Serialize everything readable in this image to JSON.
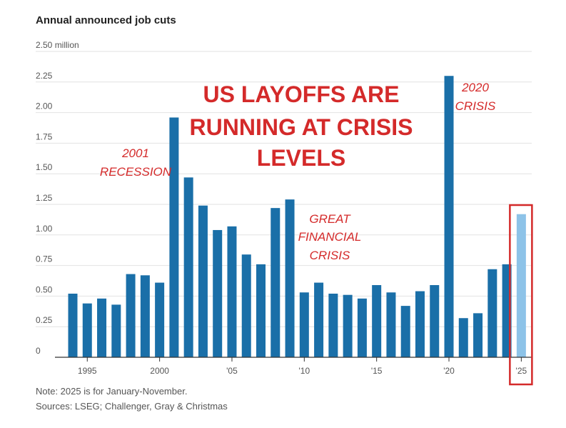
{
  "chart_data": {
    "type": "bar",
    "title": "Annual announced job cuts",
    "headline": [
      "US LAYOFFS ARE",
      "RUNNING AT CRISIS",
      "LEVELS"
    ],
    "x": [
      1994,
      1995,
      1996,
      1997,
      1998,
      1999,
      2000,
      2001,
      2002,
      2003,
      2004,
      2005,
      2006,
      2007,
      2008,
      2009,
      2010,
      2011,
      2012,
      2013,
      2014,
      2015,
      2016,
      2017,
      2018,
      2019,
      2020,
      2021,
      2022,
      2023,
      2024,
      2025
    ],
    "values": [
      0.52,
      0.44,
      0.48,
      0.43,
      0.68,
      0.67,
      0.61,
      1.96,
      1.47,
      1.24,
      1.04,
      1.07,
      0.84,
      0.76,
      1.22,
      1.29,
      0.53,
      0.61,
      0.52,
      0.51,
      0.48,
      0.59,
      0.53,
      0.42,
      0.54,
      0.59,
      2.3,
      0.32,
      0.36,
      0.72,
      0.76,
      1.17
    ],
    "highlight_year": 2025,
    "ylim": [
      0,
      2.5
    ],
    "y_ticks": [
      {
        "value": 0,
        "label": "0"
      },
      {
        "value": 0.25,
        "label": "0.25"
      },
      {
        "value": 0.5,
        "label": "0.50"
      },
      {
        "value": 0.75,
        "label": "0.75"
      },
      {
        "value": 1.0,
        "label": "1.00"
      },
      {
        "value": 1.25,
        "label": "1.25"
      },
      {
        "value": 1.5,
        "label": "1.50"
      },
      {
        "value": 1.75,
        "label": "1.75"
      },
      {
        "value": 2.0,
        "label": "2.00"
      },
      {
        "value": 2.25,
        "label": "2.25"
      },
      {
        "value": 2.5,
        "label": "2.50 million"
      }
    ],
    "x_ticks": [
      {
        "year": 1995,
        "label": "1995"
      },
      {
        "year": 2000,
        "label": "2000"
      },
      {
        "year": 2005,
        "label": "'05"
      },
      {
        "year": 2010,
        "label": "'10"
      },
      {
        "year": 2015,
        "label": "'15"
      },
      {
        "year": 2020,
        "label": "'20"
      },
      {
        "year": 2025,
        "label": "'25"
      }
    ],
    "annotations": [
      {
        "name": "annotation-2001-recession",
        "lines": [
          "2001",
          "RECESSION"
        ]
      },
      {
        "name": "annotation-great-financial-crisis",
        "lines": [
          "GREAT",
          "FINANCIAL",
          "CRISIS"
        ]
      },
      {
        "name": "annotation-2020-crisis",
        "lines": [
          "2020",
          "CRISIS"
        ]
      }
    ],
    "grid": true,
    "colors": {
      "bar": "#1a6fa8",
      "bar_highlight": "#8dc3e8",
      "annotation": "#d42a2a",
      "highlight_box": "#d42a2a",
      "grid": "#e2e2e2",
      "axis": "#333333",
      "text": "#555555",
      "title": "#222222"
    }
  },
  "note": "Note: 2025 is for January-November.",
  "sources": "Sources: LSEG; Challenger, Gray & Christmas"
}
